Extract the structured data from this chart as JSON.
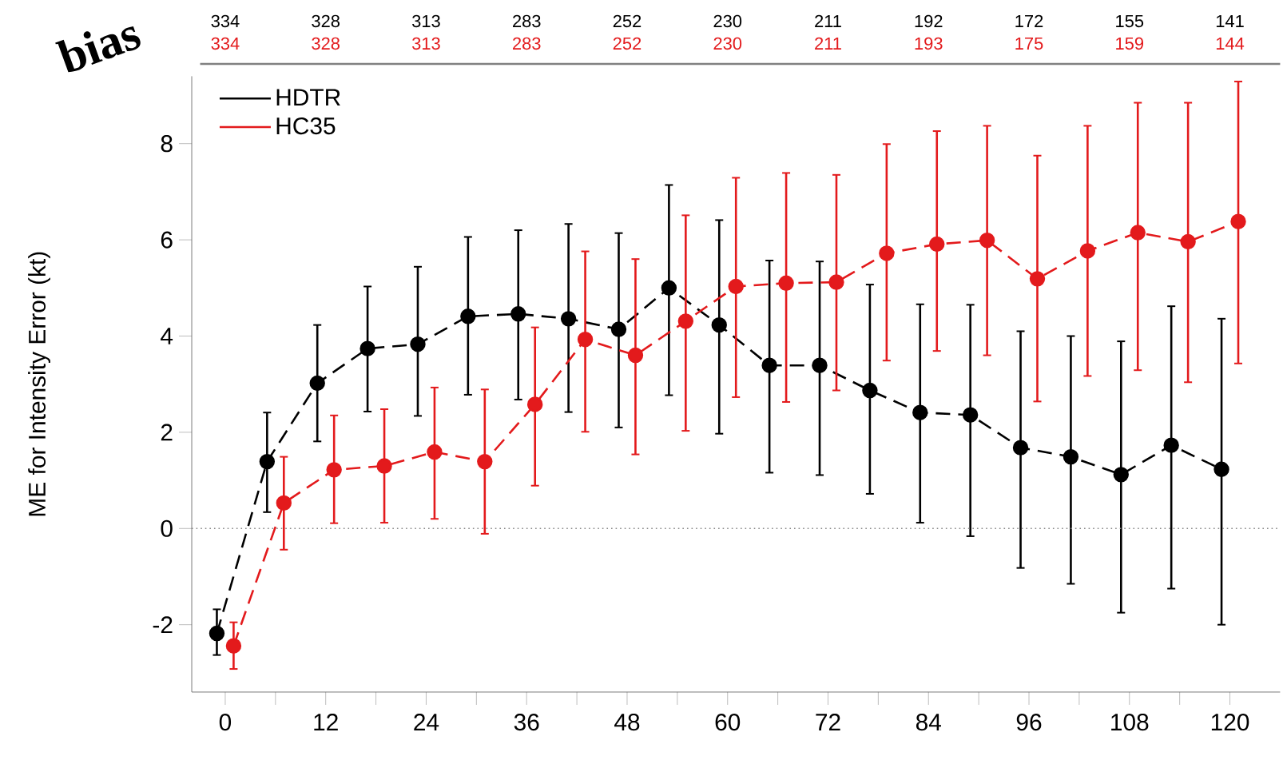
{
  "chart_data": {
    "type": "line",
    "title": "bias",
    "ylabel": "ME for Intensity Error (kt)",
    "xlim": [
      -4,
      126
    ],
    "ylim": [
      -3.4,
      9.4
    ],
    "xticks": [
      0,
      {
        "value": 6,
        "label": null
      },
      12,
      {
        "value": 18,
        "label": null
      },
      24,
      {
        "value": 30,
        "label": null
      },
      36,
      {
        "value": 42,
        "label": null
      },
      48,
      {
        "value": 54,
        "label": null
      },
      60,
      {
        "value": 66,
        "label": null
      },
      72,
      {
        "value": 78,
        "label": null
      },
      84,
      {
        "value": 90,
        "label": null
      },
      96,
      {
        "value": 102,
        "label": null
      },
      108,
      {
        "value": 114,
        "label": null
      },
      120
    ],
    "yticks": [
      -2,
      0,
      2,
      4,
      6,
      8
    ],
    "grid": false,
    "legend": "top left",
    "marker": "circle",
    "line_style": "dashed",
    "ref_lines": [
      {
        "axis": "y",
        "value": 0,
        "label": null,
        "color": "#888888",
        "line_style": "dotted"
      }
    ],
    "series": [
      {
        "name": "HDTR",
        "color": "#000000",
        "x": [
          -1,
          5,
          11,
          17,
          23,
          29,
          35,
          41,
          47,
          53,
          59,
          65,
          71,
          77,
          83,
          89,
          95,
          101,
          107,
          113,
          119
        ],
        "values": [
          -2.18,
          1.39,
          3.02,
          3.74,
          3.83,
          4.41,
          4.46,
          4.36,
          4.14,
          5.0,
          4.23,
          3.39,
          3.39,
          2.87,
          2.41,
          2.36,
          1.68,
          1.49,
          1.12,
          1.73,
          1.23
        ],
        "errors": [
          [
            -2.63,
            -1.68
          ],
          [
            0.34,
            2.41
          ],
          [
            1.81,
            4.23
          ],
          [
            2.43,
            5.03
          ],
          [
            2.34,
            5.44
          ],
          [
            2.78,
            6.06
          ],
          [
            2.68,
            6.2
          ],
          [
            2.42,
            6.33
          ],
          [
            2.1,
            6.14
          ],
          [
            2.77,
            7.14
          ],
          [
            1.97,
            6.41
          ],
          [
            1.16,
            5.57
          ],
          [
            1.11,
            5.55
          ],
          [
            0.72,
            5.07
          ],
          [
            0.12,
            4.66
          ],
          [
            -0.16,
            4.65
          ],
          [
            -0.82,
            4.1
          ],
          [
            -1.15,
            4.0
          ],
          [
            -1.75,
            3.89
          ],
          [
            -1.25,
            4.62
          ],
          [
            -2.0,
            4.36
          ]
        ]
      },
      {
        "name": "HC35",
        "color": "#e31a1c",
        "x": [
          1,
          7,
          13,
          19,
          25,
          31,
          37,
          43,
          49,
          55,
          61,
          67,
          73,
          79,
          85,
          91,
          97,
          103,
          109,
          115,
          121
        ],
        "values": [
          -2.44,
          0.53,
          1.22,
          1.3,
          1.59,
          1.39,
          2.58,
          3.93,
          3.6,
          4.31,
          5.03,
          5.1,
          5.12,
          5.72,
          5.91,
          5.99,
          5.19,
          5.77,
          6.15,
          5.96,
          6.38
        ],
        "errors": [
          [
            -2.92,
            -1.95
          ],
          [
            -0.44,
            1.49
          ],
          [
            0.11,
            2.35
          ],
          [
            0.12,
            2.48
          ],
          [
            0.2,
            2.93
          ],
          [
            -0.11,
            2.89
          ],
          [
            0.89,
            4.18
          ],
          [
            2.01,
            5.76
          ],
          [
            1.54,
            5.6
          ],
          [
            2.03,
            6.51
          ],
          [
            2.73,
            7.29
          ],
          [
            2.63,
            7.39
          ],
          [
            2.87,
            7.35
          ],
          [
            3.49,
            7.99
          ],
          [
            3.69,
            8.26
          ],
          [
            3.6,
            8.37
          ],
          [
            2.64,
            7.75
          ],
          [
            3.17,
            8.37
          ],
          [
            3.29,
            8.85
          ],
          [
            3.04,
            8.85
          ],
          [
            3.43,
            9.29
          ]
        ]
      }
    ],
    "annotations": [
      "334",
      "328",
      "313",
      "283",
      "252",
      "230",
      "211",
      "192",
      "172",
      "155",
      "141",
      "334",
      "328",
      "313",
      "283",
      "252",
      "230",
      "211",
      "193",
      "175",
      "159",
      "144"
    ]
  }
}
